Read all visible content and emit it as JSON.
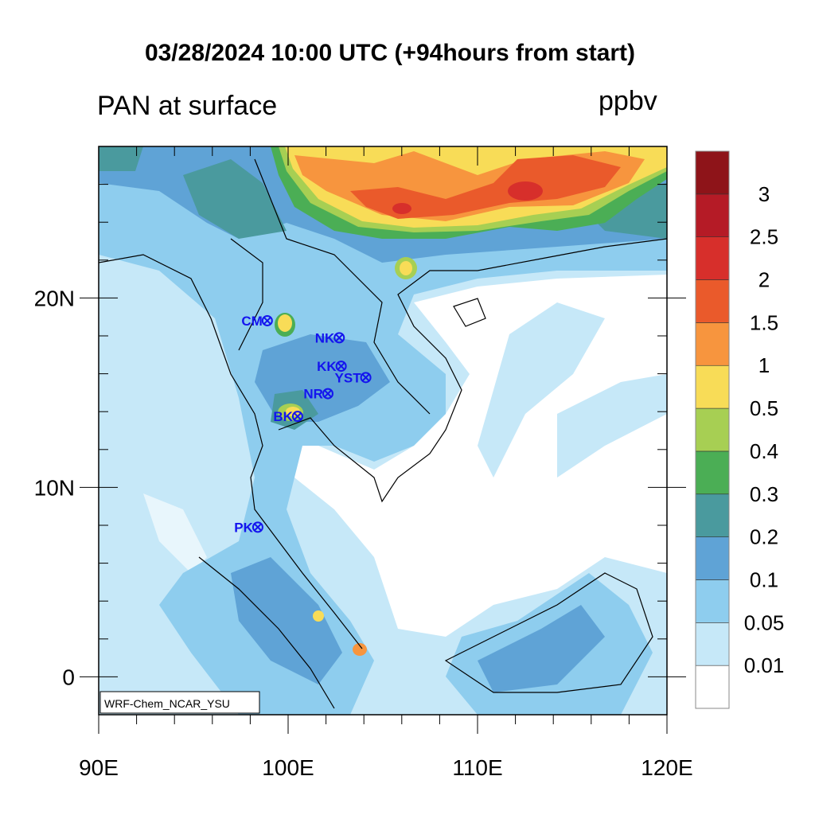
{
  "title": "03/28/2024 10:00 UTC (+94hours from start)",
  "left_title": "PAN at surface",
  "right_title": "ppbv",
  "credit": "WRF-Chem_NCAR_YSU",
  "map": {
    "lon_range": [
      90,
      120
    ],
    "lat_range": [
      -2,
      28
    ],
    "x_ticks": [
      {
        "value": 90,
        "label": "90E"
      },
      {
        "value": 100,
        "label": "100E"
      },
      {
        "value": 110,
        "label": "110E"
      },
      {
        "value": 120,
        "label": "120E"
      }
    ],
    "y_ticks": [
      {
        "value": 0,
        "label": "0"
      },
      {
        "value": 10,
        "label": "10N"
      },
      {
        "value": 20,
        "label": "20N"
      }
    ],
    "stations": [
      {
        "name": "CM",
        "lon": 98.9,
        "lat": 18.8
      },
      {
        "name": "NK",
        "lon": 102.7,
        "lat": 17.9
      },
      {
        "name": "KK",
        "lon": 102.8,
        "lat": 16.4
      },
      {
        "name": "YST",
        "lon": 104.1,
        "lat": 15.8
      },
      {
        "name": "NR",
        "lon": 102.1,
        "lat": 14.95
      },
      {
        "name": "BK",
        "lon": 100.5,
        "lat": 13.75
      },
      {
        "name": "PK",
        "lon": 98.4,
        "lat": 7.9
      }
    ]
  },
  "colorbar": {
    "levels": [
      "0.01",
      "0.05",
      "0.1",
      "0.2",
      "0.3",
      "0.4",
      "0.5",
      "1",
      "1.5",
      "2",
      "2.5",
      "3"
    ],
    "colors": [
      "#ffffff",
      "#c6e8f8",
      "#8ecdee",
      "#5fa3d6",
      "#4a9a9e",
      "#4bae55",
      "#a7cf53",
      "#f8dc57",
      "#f7953e",
      "#ea5a2b",
      "#d72f2b",
      "#b51b26",
      "#8e1419"
    ]
  }
}
